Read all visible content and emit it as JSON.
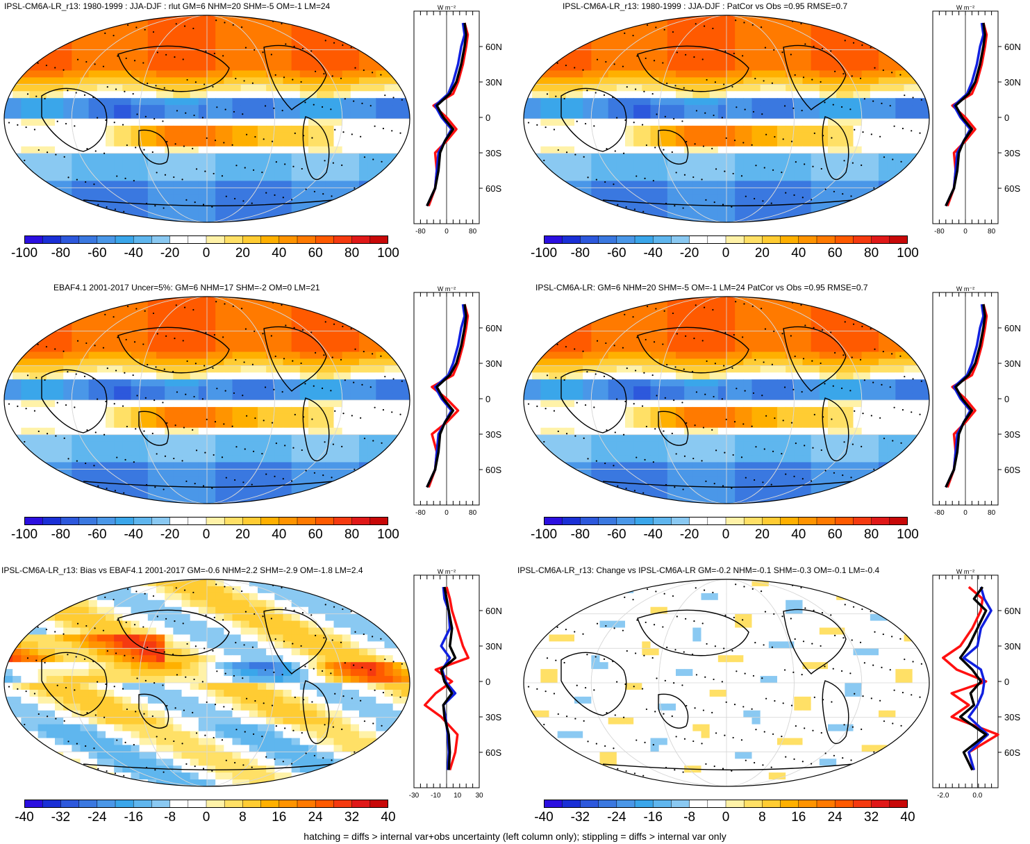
{
  "panels": [
    {
      "id": "p1",
      "title": "IPSL-CM6A-LR_r13: 1980-1999 : JJA-DJF : rlut GM=6 NHM=20 SHM=-5 OM=-1 LM=24",
      "colorbar_ticks": [
        "-100",
        "-80",
        "-60",
        "-40",
        "-20",
        "0",
        "20",
        "40",
        "60",
        "80",
        "100"
      ],
      "profile_unit": "W m⁻²",
      "profile_xticks": [
        "-80",
        "0",
        "80"
      ],
      "profile_lat_ticks": [
        "60N",
        "30N",
        "0",
        "30S",
        "60S"
      ]
    },
    {
      "id": "p2",
      "title": "IPSL-CM6A-LR_r13: 1980-1999 : JJA-DJF : PatCor vs Obs =0.95 RMSE=0.7",
      "colorbar_ticks": [
        "-100",
        "-80",
        "-60",
        "-40",
        "-20",
        "0",
        "20",
        "40",
        "60",
        "80",
        "100"
      ],
      "profile_unit": "W m⁻²",
      "profile_xticks": [
        "-80",
        "0",
        "80"
      ],
      "profile_lat_ticks": [
        "60N",
        "30N",
        "0",
        "30S",
        "60S"
      ]
    },
    {
      "id": "p3",
      "title": "EBAF4.1 2001-2017 Uncer=5%: GM=6 NHM=17 SHM=-2 OM=0 LM=21",
      "colorbar_ticks": [
        "-100",
        "-80",
        "-60",
        "-40",
        "-20",
        "0",
        "20",
        "40",
        "60",
        "80",
        "100"
      ],
      "profile_unit": "W m⁻²",
      "profile_xticks": [
        "-80",
        "0",
        "80"
      ],
      "profile_lat_ticks": [
        "60N",
        "30N",
        "0",
        "30S",
        "60S"
      ]
    },
    {
      "id": "p4",
      "title": "IPSL-CM6A-LR: GM=6 NHM=20 SHM=-5 OM=-1 LM=24 PatCor vs Obs =0.95 RMSE=0.7",
      "colorbar_ticks": [
        "-100",
        "-80",
        "-60",
        "-40",
        "-20",
        "0",
        "20",
        "40",
        "60",
        "80",
        "100"
      ],
      "profile_unit": "W m⁻²",
      "profile_xticks": [
        "-80",
        "0",
        "80"
      ],
      "profile_lat_ticks": [
        "60N",
        "30N",
        "0",
        "30S",
        "60S"
      ]
    },
    {
      "id": "p5",
      "title": "IPSL-CM6A-LR_r13: Bias vs EBAF4.1 2001-2017 GM=-0.6 NHM=2.2 SHM=-2.9 OM=-1.8 LM=2.4",
      "colorbar_ticks": [
        "-40",
        "-32",
        "-24",
        "-16",
        "-8",
        "0",
        "8",
        "16",
        "24",
        "32",
        "40"
      ],
      "profile_unit": "W m⁻²",
      "profile_xticks": [
        "-30",
        "-10",
        "10",
        "30"
      ],
      "profile_lat_ticks": [
        "60N",
        "30N",
        "0",
        "30S",
        "60S"
      ]
    },
    {
      "id": "p6",
      "title": "IPSL-CM6A-LR_r13: Change vs IPSL-CM6A-LR GM=-0.2 NHM=-0.1 SHM=-0.3 OM=-0.1 LM=-0.4",
      "colorbar_ticks": [
        "-40",
        "-32",
        "-24",
        "-16",
        "-8",
        "0",
        "8",
        "16",
        "24",
        "32",
        "40"
      ],
      "profile_unit": "W m⁻²",
      "profile_xticks": [
        "-2.0",
        "0.0"
      ],
      "profile_lat_ticks": [
        "60N",
        "30N",
        "0",
        "30S",
        "60S"
      ]
    }
  ],
  "colormap": [
    "#2b0fe0",
    "#1a2fd6",
    "#2d58dc",
    "#3a78e0",
    "#4a97e8",
    "#3aa6ea",
    "#5fb6ee",
    "#8ac9f2",
    "#ffffff",
    "#ffffff",
    "#fff2a8",
    "#ffe066",
    "#ffcc33",
    "#ffb000",
    "#ff9400",
    "#ff7a00",
    "#ff5a00",
    "#f53a10",
    "#e01818",
    "#c80808"
  ],
  "line_colors": {
    "model": "#000000",
    "obs": "#ff1010",
    "reference": "#1020e0"
  },
  "footer": "hatching = diffs > internal var+obs uncertainty (left column only); stippling = diffs > internal var only",
  "chart_data": [
    {
      "panel": "p1",
      "type": "heatmap",
      "title": "IPSL-CM6A-LR_r13: 1980-1999 : JJA-DJF : rlut GM=6 NHM=20 SHM=-5 OM=-1 LM=24",
      "clim": [
        -100,
        100
      ],
      "zonal_mean": {
        "lat": [
          80,
          70,
          60,
          45,
          30,
          20,
          10,
          0,
          -10,
          -20,
          -30,
          -45,
          -60,
          -75
        ],
        "series": [
          {
            "values": [
              55,
              60,
              55,
              45,
              30,
              10,
              -30,
              -10,
              20,
              -5,
              -20,
              -25,
              -35,
              -60
            ]
          },
          {
            "values": [
              55,
              65,
              60,
              50,
              35,
              20,
              -40,
              0,
              30,
              0,
              -35,
              -30,
              -35,
              -55
            ]
          },
          {
            "values": [
              50,
              55,
              45,
              35,
              20,
              5,
              -35,
              -15,
              15,
              -5,
              -25,
              -30,
              -35,
              -60
            ]
          }
        ]
      }
    },
    {
      "panel": "p2",
      "type": "heatmap",
      "title": "IPSL-CM6A-LR_r13: 1980-1999 : JJA-DJF : PatCor vs Obs =0.95 RMSE=0.7",
      "clim": [
        -100,
        100
      ],
      "zonal_mean": {
        "lat": [
          80,
          70,
          60,
          45,
          30,
          20,
          10,
          0,
          -10,
          -20,
          -30,
          -45,
          -60,
          -75
        ],
        "series": [
          {
            "values": [
              55,
              60,
              55,
              45,
              30,
              10,
              -30,
              -10,
              20,
              -5,
              -20,
              -25,
              -35,
              -60
            ]
          },
          {
            "values": [
              55,
              65,
              60,
              50,
              35,
              20,
              -40,
              0,
              30,
              0,
              -35,
              -30,
              -35,
              -55
            ]
          },
          {
            "values": [
              50,
              55,
              45,
              35,
              20,
              5,
              -35,
              -15,
              15,
              -5,
              -25,
              -30,
              -35,
              -60
            ]
          }
        ]
      }
    },
    {
      "panel": "p3",
      "type": "heatmap",
      "title": "EBAF4.1 2001-2017 Uncer=5%: GM=6 NHM=17 SHM=-2 OM=0 LM=21",
      "clim": [
        -100,
        100
      ],
      "zonal_mean": {
        "lat": [
          80,
          70,
          60,
          45,
          30,
          20,
          10,
          0,
          -10,
          -20,
          -30,
          -45,
          -60,
          -75
        ],
        "series": [
          {
            "values": [
              55,
              60,
              55,
              45,
              30,
              10,
              -30,
              -10,
              20,
              -5,
              -20,
              -25,
              -35,
              -60
            ]
          },
          {
            "values": [
              55,
              65,
              60,
              50,
              35,
              20,
              -45,
              0,
              35,
              0,
              -45,
              -30,
              -35,
              -55
            ]
          },
          {
            "values": [
              50,
              55,
              45,
              35,
              20,
              5,
              -35,
              -15,
              15,
              -5,
              -25,
              -30,
              -35,
              -60
            ]
          }
        ]
      }
    },
    {
      "panel": "p4",
      "type": "heatmap",
      "title": "IPSL-CM6A-LR: GM=6 NHM=20 SHM=-5 OM=-1 LM=24 PatCor vs Obs =0.95 RMSE=0.7",
      "clim": [
        -100,
        100
      ],
      "zonal_mean": {
        "lat": [
          80,
          70,
          60,
          45,
          30,
          20,
          10,
          0,
          -10,
          -20,
          -30,
          -45,
          -60,
          -75
        ],
        "series": [
          {
            "values": [
              55,
              60,
              55,
              45,
              30,
              10,
              -30,
              -10,
              20,
              -5,
              -20,
              -25,
              -35,
              -60
            ]
          },
          {
            "values": [
              55,
              65,
              60,
              50,
              35,
              20,
              -40,
              0,
              30,
              0,
              -35,
              -30,
              -35,
              -55
            ]
          },
          {
            "values": [
              50,
              55,
              45,
              35,
              20,
              5,
              -35,
              -15,
              15,
              -5,
              -25,
              -30,
              -35,
              -60
            ]
          }
        ]
      }
    },
    {
      "panel": "p5",
      "type": "heatmap",
      "title": "IPSL-CM6A-LR_r13: Bias vs EBAF4.1 2001-2017 GM=-0.6 NHM=2.2 SHM=-2.9 OM=-1.8 LM=2.4",
      "clim": [
        -40,
        40
      ],
      "zonal_mean": {
        "lat": [
          80,
          70,
          60,
          45,
          30,
          20,
          10,
          0,
          -10,
          -20,
          -30,
          -45,
          -60,
          -75
        ],
        "series": [
          {
            "values": [
              -2,
              0,
              2,
              5,
              3,
              8,
              -5,
              -2,
              5,
              -3,
              -2,
              2,
              3,
              2
            ]
          },
          {
            "values": [
              0,
              3,
              5,
              10,
              15,
              20,
              -10,
              5,
              -10,
              -20,
              -5,
              10,
              8,
              3
            ]
          },
          {
            "values": [
              -3,
              -2,
              2,
              3,
              -5,
              3,
              -4,
              -1,
              8,
              -3,
              -1,
              1,
              2,
              1
            ]
          }
        ]
      }
    },
    {
      "panel": "p6",
      "type": "heatmap",
      "title": "IPSL-CM6A-LR_r13: Change vs IPSL-CM6A-LR GM=-0.2 NHM=-0.1 SHM=-0.3 OM=-0.1 LM=-0.4",
      "clim": [
        -40,
        40
      ],
      "zonal_mean": {
        "lat": [
          80,
          70,
          60,
          45,
          30,
          20,
          10,
          0,
          -10,
          -20,
          -30,
          -45,
          -60,
          -75
        ],
        "series": [
          {
            "values": [
              0.3,
              -0.2,
              0.5,
              0.0,
              -0.5,
              -1.0,
              -0.3,
              0.2,
              -0.4,
              -0.2,
              -1.0,
              0.5,
              -0.8,
              -0.3
            ]
          },
          {
            "values": [
              -0.5,
              0.3,
              0.2,
              -0.3,
              -1.0,
              -2.0,
              -1.2,
              0.5,
              -1.5,
              -0.5,
              -1.5,
              1.2,
              -0.5,
              -0.2
            ]
          },
          {
            "values": [
              0.2,
              0.4,
              0.8,
              0.2,
              0.0,
              -0.8,
              0.2,
              0.4,
              0.3,
              0.0,
              -0.5,
              0.6,
              -0.5,
              -0.2
            ]
          }
        ]
      }
    }
  ]
}
